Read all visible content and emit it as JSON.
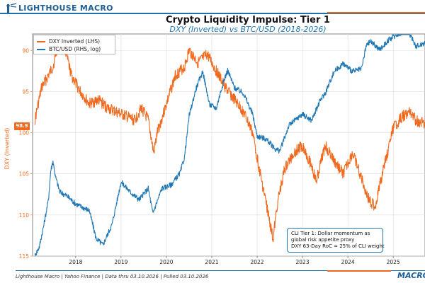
{
  "header": {
    "brand": "LIGHTHOUSE MACRO",
    "title": "Crypto Liquidity Impulse: Tier 1",
    "subtitle": "DXY (Inverted) vs BTC/USD (2018-2026)"
  },
  "colors": {
    "dxy": "#ef6a1e",
    "btc": "#1f77b4",
    "brand_blue": "#1f5f96",
    "accent_orange": "#ef6a1e"
  },
  "legend": [
    {
      "label": "DXY Inverted (LHS)",
      "color": "#ef6a1e"
    },
    {
      "label": "BTC/USD (RHS, log)",
      "color": "#1f77b4"
    }
  ],
  "annotation": {
    "lines": [
      "CLI Tier 1: Dollar momentum as",
      "global risk appetite proxy",
      "DXY 63-Day RoC = 25% of CLI weight"
    ]
  },
  "current_value_badge": "98.9",
  "footer": {
    "source": "Lighthouse Macro | Yahoo Finance | Data thru 03.10.2026 | Pulled 03.10.2026",
    "brand": "MACRO"
  },
  "chart_data": {
    "type": "line",
    "title": "Crypto Liquidity Impulse: Tier 1",
    "subtitle": "DXY (Inverted) vs BTC/USD (2018-2026)",
    "xlabel": "",
    "ylabel": "DXY (Inverted)",
    "xlim": [
      2017.55,
      2026.2
    ],
    "x_ticks": [
      "2018",
      "2019",
      "2020",
      "2021",
      "2022",
      "2023",
      "2024",
      "2025"
    ],
    "y_left": {
      "inverted": true,
      "lim": [
        88.0,
        115.0
      ],
      "ticks": [
        "90",
        "95",
        "100",
        "105",
        "110",
        "115"
      ]
    },
    "y_right": {
      "scale": "log",
      "lim": [
        3000,
        110000
      ],
      "tick_labels_visible": false
    },
    "grid": true,
    "legend_position": "upper-left",
    "series": [
      {
        "name": "DXY Inverted (LHS)",
        "axis": "left",
        "color": "#ef6a1e",
        "x": [
          2017.6,
          2017.75,
          2017.9,
          2018.0,
          2018.1,
          2018.15,
          2018.25,
          2018.4,
          2018.6,
          2018.8,
          2019.0,
          2019.2,
          2019.4,
          2019.6,
          2019.8,
          2019.95,
          2020.1,
          2020.22,
          2020.3,
          2020.5,
          2020.7,
          2020.9,
          2021.0,
          2021.2,
          2021.4,
          2021.6,
          2021.8,
          2022.0,
          2022.2,
          2022.4,
          2022.55,
          2022.75,
          2022.85,
          2022.95,
          2023.1,
          2023.3,
          2023.5,
          2023.7,
          2023.8,
          2024.0,
          2024.2,
          2024.4,
          2024.6,
          2024.8,
          2024.95,
          2025.1,
          2025.3,
          2025.5,
          2025.7,
          2025.9,
          2026.0,
          2026.2
        ],
        "values": [
          98.5,
          94.5,
          93.0,
          92.0,
          89.5,
          90.0,
          89.5,
          93.0,
          95.0,
          96.5,
          96.0,
          97.0,
          97.5,
          98.0,
          98.5,
          97.0,
          98.5,
          102.5,
          100.0,
          96.5,
          93.0,
          92.0,
          90.0,
          91.5,
          90.5,
          92.5,
          94.5,
          96.0,
          97.5,
          100.0,
          104.5,
          110.0,
          113.0,
          108.5,
          104.5,
          102.5,
          101.5,
          104.0,
          106.0,
          101.5,
          103.5,
          105.0,
          102.5,
          105.5,
          108.0,
          109.0,
          104.0,
          99.5,
          98.0,
          97.5,
          98.5,
          99.0
        ]
      },
      {
        "name": "BTC/USD (RHS, log)",
        "axis": "right",
        "color": "#1f77b4",
        "x": [
          2017.6,
          2017.7,
          2017.8,
          2017.9,
          2017.95,
          2018.0,
          2018.05,
          2018.15,
          2018.3,
          2018.5,
          2018.7,
          2018.8,
          2018.95,
          2019.1,
          2019.3,
          2019.5,
          2019.7,
          2019.9,
          2020.1,
          2020.2,
          2020.4,
          2020.6,
          2020.8,
          2020.9,
          2021.0,
          2021.15,
          2021.3,
          2021.45,
          2021.6,
          2021.75,
          2021.85,
          2022.0,
          2022.2,
          2022.4,
          2022.5,
          2022.7,
          2022.9,
          2023.0,
          2023.2,
          2023.5,
          2023.7,
          2023.9,
          2024.0,
          2024.2,
          2024.4,
          2024.6,
          2024.8,
          2024.9,
          2025.0,
          2025.2,
          2025.4,
          2025.6,
          2025.8,
          2025.9,
          2026.0,
          2026.2
        ],
        "values": [
          3000,
          3500,
          5000,
          7500,
          12000,
          14000,
          11000,
          8500,
          8000,
          7000,
          6500,
          6300,
          4000,
          3600,
          5000,
          10000,
          8500,
          7500,
          9000,
          6000,
          9000,
          9500,
          11500,
          15000,
          29000,
          45000,
          60000,
          35000,
          33000,
          50000,
          61000,
          46000,
          42000,
          30000,
          21000,
          20000,
          17000,
          16500,
          25000,
          30000,
          27000,
          38000,
          42000,
          60000,
          68000,
          60000,
          62000,
          90000,
          98000,
          85000,
          100000,
          110000,
          115000,
          105000,
          90000,
          95000
        ]
      }
    ]
  }
}
